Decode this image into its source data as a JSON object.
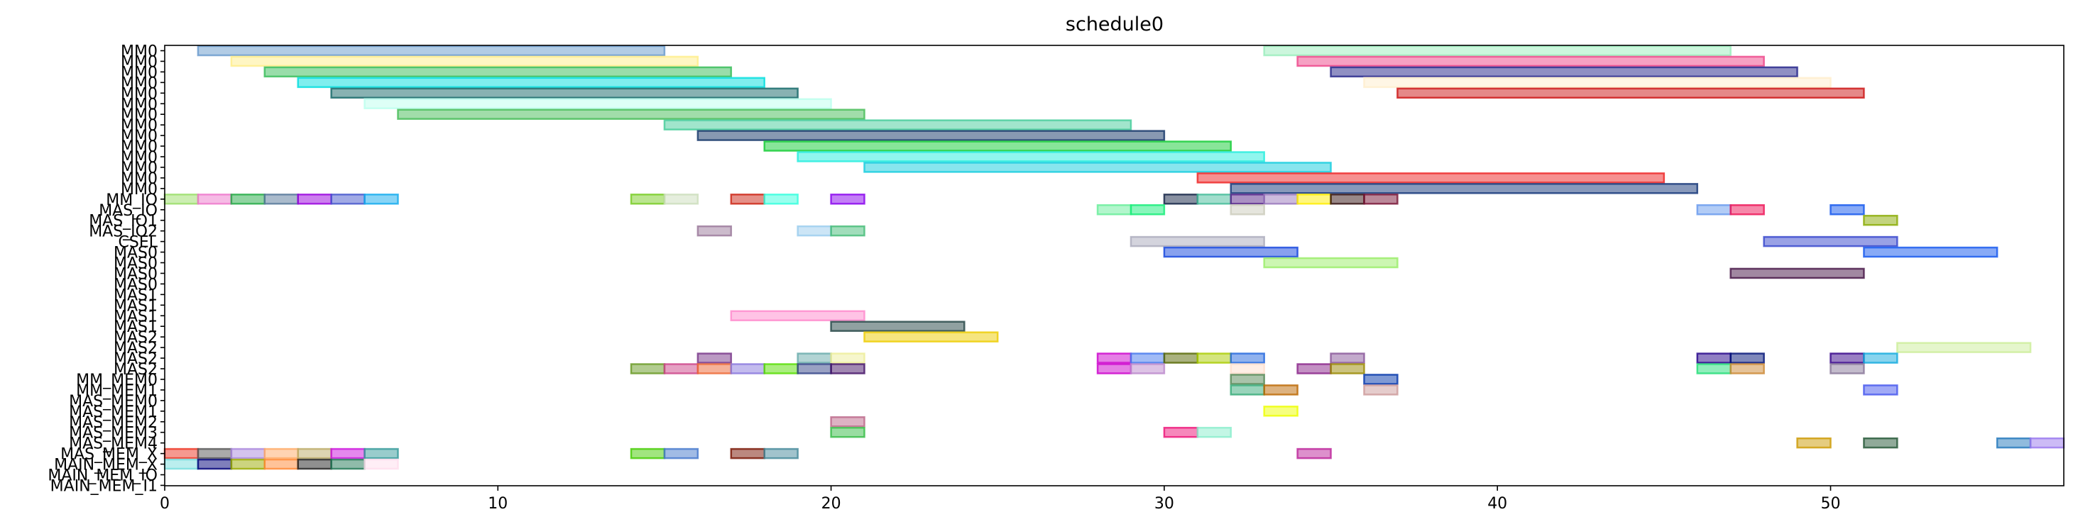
{
  "chart_data": {
    "type": "gantt",
    "title": "schedule0",
    "xlabel": "",
    "ylabel": "",
    "xlim": [
      0,
      57
    ],
    "x_ticks": [
      0,
      10,
      20,
      30,
      40,
      50
    ],
    "grid": false,
    "rows": [
      "MM0",
      "MM0",
      "MM0",
      "MM0",
      "MM0",
      "MM0",
      "MM0",
      "MM0",
      "MM0",
      "MM0",
      "MM0",
      "MM0",
      "MM0",
      "MM0",
      "MM_IO",
      "MAS_IO",
      "MAS_IO1",
      "MAS_IO2",
      "CSEL",
      "MAS0",
      "MAS0",
      "MAS0",
      "MAS0",
      "MAS1",
      "MAS1",
      "MAS1",
      "MAS1",
      "MAS2",
      "MAS2",
      "MAS2",
      "MAS2",
      "MM_MEM0",
      "MM_MEM1",
      "MAS_MEM0",
      "MAS_MEM1",
      "MAS_MEM2",
      "MAS_MEM3",
      "MAS_MEM4",
      "MAS_MEM_X",
      "MAIN_MEM_X",
      "MAIN_MEM_IO",
      "MAIN_MEM_I1"
    ],
    "bars": [
      {
        "row": 0,
        "start": 1,
        "end": 15,
        "color": "#6699cc"
      },
      {
        "row": 0,
        "start": 33,
        "end": 47,
        "color": "#99eebb"
      },
      {
        "row": 1,
        "start": 2,
        "end": 16,
        "color": "#ffee88"
      },
      {
        "row": 1,
        "start": 34,
        "end": 48,
        "color": "#ee4488"
      },
      {
        "row": 2,
        "start": 3,
        "end": 17,
        "color": "#33bb55"
      },
      {
        "row": 2,
        "start": 35,
        "end": 49,
        "color": "#222288"
      },
      {
        "row": 3,
        "start": 4,
        "end": 18,
        "color": "#00dddd"
      },
      {
        "row": 3,
        "start": 36,
        "end": 50,
        "color": "#ffeecc"
      },
      {
        "row": 4,
        "start": 5,
        "end": 19,
        "color": "#116666"
      },
      {
        "row": 4,
        "start": 37,
        "end": 51,
        "color": "#cc1111"
      },
      {
        "row": 5,
        "start": 6,
        "end": 20,
        "color": "#bbffee"
      },
      {
        "row": 6,
        "start": 7,
        "end": 21,
        "color": "#44bb55"
      },
      {
        "row": 7,
        "start": 15,
        "end": 29,
        "color": "#44cc99"
      },
      {
        "row": 8,
        "start": 16,
        "end": 30,
        "color": "#113366"
      },
      {
        "row": 9,
        "start": 18,
        "end": 32,
        "color": "#11cc33"
      },
      {
        "row": 10,
        "start": 19,
        "end": 33,
        "color": "#22eedd"
      },
      {
        "row": 11,
        "start": 21,
        "end": 35,
        "color": "#11ccdd"
      },
      {
        "row": 12,
        "start": 31,
        "end": 45,
        "color": "#ee2222"
      },
      {
        "row": 13,
        "start": 32,
        "end": 46,
        "color": "#113377"
      },
      {
        "row": 14,
        "start": 0,
        "end": 1,
        "color": "#99dd66"
      },
      {
        "row": 14,
        "start": 1,
        "end": 2,
        "color": "#ee77cc"
      },
      {
        "row": 14,
        "start": 2,
        "end": 3,
        "color": "#22aa44"
      },
      {
        "row": 14,
        "start": 3,
        "end": 4,
        "color": "#557799"
      },
      {
        "row": 14,
        "start": 4,
        "end": 5,
        "color": "#9900dd"
      },
      {
        "row": 14,
        "start": 5,
        "end": 6,
        "color": "#4455cc"
      },
      {
        "row": 14,
        "start": 6,
        "end": 7,
        "color": "#11aaee"
      },
      {
        "row": 14,
        "start": 14,
        "end": 15,
        "color": "#77cc22"
      },
      {
        "row": 14,
        "start": 15,
        "end": 16,
        "color": "#ccddbb"
      },
      {
        "row": 14,
        "start": 17,
        "end": 18,
        "color": "#cc2211"
      },
      {
        "row": 14,
        "start": 18,
        "end": 19,
        "color": "#33ffdd"
      },
      {
        "row": 14,
        "start": 20,
        "end": 21,
        "color": "#8800ee"
      },
      {
        "row": 14,
        "start": 30,
        "end": 31,
        "color": "#112244"
      },
      {
        "row": 14,
        "start": 31,
        "end": 32,
        "color": "#44bb99"
      },
      {
        "row": 14,
        "start": 32,
        "end": 33,
        "color": "#552288"
      },
      {
        "row": 14,
        "start": 33,
        "end": 34,
        "color": "#9977bb"
      },
      {
        "row": 14,
        "start": 34,
        "end": 35,
        "color": "#ffee00"
      },
      {
        "row": 14,
        "start": 35,
        "end": 36,
        "color": "#331111"
      },
      {
        "row": 14,
        "start": 36,
        "end": 37,
        "color": "#771133"
      },
      {
        "row": 15,
        "start": 28,
        "end": 29,
        "color": "#66ee99"
      },
      {
        "row": 15,
        "start": 29,
        "end": 30,
        "color": "#11ee77"
      },
      {
        "row": 15,
        "start": 32,
        "end": 33,
        "color": "#ccccbb"
      },
      {
        "row": 15,
        "start": 46,
        "end": 47,
        "color": "#6699ee"
      },
      {
        "row": 15,
        "start": 47,
        "end": 48,
        "color": "#ee1155"
      },
      {
        "row": 15,
        "start": 50,
        "end": 51,
        "color": "#1155ee"
      },
      {
        "row": 16,
        "start": 51,
        "end": 52,
        "color": "#88aa00"
      },
      {
        "row": 17,
        "start": 16,
        "end": 17,
        "color": "#997799"
      },
      {
        "row": 17,
        "start": 19,
        "end": 20,
        "color": "#99ccee"
      },
      {
        "row": 17,
        "start": 20,
        "end": 21,
        "color": "#44bb77"
      },
      {
        "row": 18,
        "start": 29,
        "end": 33,
        "color": "#aaaabb"
      },
      {
        "row": 18,
        "start": 48,
        "end": 52,
        "color": "#3344cc"
      },
      {
        "row": 19,
        "start": 30,
        "end": 34,
        "color": "#1144dd"
      },
      {
        "row": 19,
        "start": 51,
        "end": 55,
        "color": "#1155ee"
      },
      {
        "row": 20,
        "start": 33,
        "end": 37,
        "color": "#99ee66"
      },
      {
        "row": 21,
        "start": 47,
        "end": 51,
        "color": "#441144"
      },
      {
        "row": 25,
        "start": 17,
        "end": 21,
        "color": "#ff88cc"
      },
      {
        "row": 26,
        "start": 20,
        "end": 24,
        "color": "#224444"
      },
      {
        "row": 27,
        "start": 21,
        "end": 25,
        "color": "#eecc00"
      },
      {
        "row": 28,
        "start": 52,
        "end": 56,
        "color": "#ccee99"
      },
      {
        "row": 29,
        "start": 16,
        "end": 17,
        "color": "#773388"
      },
      {
        "row": 29,
        "start": 19,
        "end": 20,
        "color": "#66aaaa"
      },
      {
        "row": 29,
        "start": 20,
        "end": 21,
        "color": "#eeee99"
      },
      {
        "row": 29,
        "start": 28,
        "end": 29,
        "color": "#cc00cc"
      },
      {
        "row": 29,
        "start": 29,
        "end": 30,
        "color": "#4477ee"
      },
      {
        "row": 29,
        "start": 30,
        "end": 31,
        "color": "#556600"
      },
      {
        "row": 29,
        "start": 31,
        "end": 32,
        "color": "#aacc00"
      },
      {
        "row": 29,
        "start": 32,
        "end": 33,
        "color": "#2266dd"
      },
      {
        "row": 29,
        "start": 35,
        "end": 36,
        "color": "#885599"
      },
      {
        "row": 29,
        "start": 46,
        "end": 47,
        "color": "#220088"
      },
      {
        "row": 29,
        "start": 47,
        "end": 48,
        "color": "#001177"
      },
      {
        "row": 29,
        "start": 50,
        "end": 51,
        "color": "#330088"
      },
      {
        "row": 29,
        "start": 51,
        "end": 52,
        "color": "#11aadd"
      },
      {
        "row": 30,
        "start": 14,
        "end": 15,
        "color": "#669922"
      },
      {
        "row": 30,
        "start": 15,
        "end": 16,
        "color": "#cc4488"
      },
      {
        "row": 30,
        "start": 16,
        "end": 17,
        "color": "#ee6633"
      },
      {
        "row": 30,
        "start": 17,
        "end": 18,
        "color": "#8877dd"
      },
      {
        "row": 30,
        "start": 18,
        "end": 19,
        "color": "#55dd00"
      },
      {
        "row": 30,
        "start": 19,
        "end": 20,
        "color": "#334488"
      },
      {
        "row": 30,
        "start": 20,
        "end": 21,
        "color": "#441166"
      },
      {
        "row": 30,
        "start": 28,
        "end": 29,
        "color": "#cc00cc"
      },
      {
        "row": 30,
        "start": 29,
        "end": 30,
        "color": "#bb88cc"
      },
      {
        "row": 30,
        "start": 32,
        "end": 33,
        "color": "#ffddcc"
      },
      {
        "row": 30,
        "start": 34,
        "end": 35,
        "color": "#882288"
      },
      {
        "row": 30,
        "start": 35,
        "end": 36,
        "color": "#998800"
      },
      {
        "row": 30,
        "start": 46,
        "end": 47,
        "color": "#22dd77"
      },
      {
        "row": 30,
        "start": 47,
        "end": 48,
        "color": "#cc8833"
      },
      {
        "row": 30,
        "start": 50,
        "end": 51,
        "color": "#887799"
      },
      {
        "row": 31,
        "start": 32,
        "end": 33,
        "color": "#558855"
      },
      {
        "row": 31,
        "start": 36,
        "end": 37,
        "color": "#0033aa"
      },
      {
        "row": 32,
        "start": 32,
        "end": 33,
        "color": "#33aa77"
      },
      {
        "row": 32,
        "start": 33,
        "end": 34,
        "color": "#bb6600"
      },
      {
        "row": 32,
        "start": 36,
        "end": 37,
        "color": "#cc9999"
      },
      {
        "row": 32,
        "start": 51,
        "end": 52,
        "color": "#4455ee"
      },
      {
        "row": 34,
        "start": 33,
        "end": 34,
        "color": "#eeff00"
      },
      {
        "row": 35,
        "start": 20,
        "end": 21,
        "color": "#bb6688"
      },
      {
        "row": 36,
        "start": 20,
        "end": 21,
        "color": "#33bb44"
      },
      {
        "row": 36,
        "start": 30,
        "end": 31,
        "color": "#ee1177"
      },
      {
        "row": 36,
        "start": 31,
        "end": 32,
        "color": "#88eecc"
      },
      {
        "row": 37,
        "start": 49,
        "end": 50,
        "color": "#cc9900"
      },
      {
        "row": 37,
        "start": 51,
        "end": 52,
        "color": "#225533"
      },
      {
        "row": 37,
        "start": 55,
        "end": 56,
        "color": "#2277bb"
      },
      {
        "row": 37,
        "start": 56,
        "end": 57,
        "color": "#9977ee"
      },
      {
        "row": 38,
        "start": 0,
        "end": 1,
        "color": "#ee3322"
      },
      {
        "row": 38,
        "start": 1,
        "end": 2,
        "color": "#555555"
      },
      {
        "row": 38,
        "start": 2,
        "end": 3,
        "color": "#aa88dd"
      },
      {
        "row": 38,
        "start": 3,
        "end": 4,
        "color": "#ffaa66"
      },
      {
        "row": 38,
        "start": 4,
        "end": 5,
        "color": "#bbaa66"
      },
      {
        "row": 38,
        "start": 5,
        "end": 6,
        "color": "#cc11dd"
      },
      {
        "row": 38,
        "start": 6,
        "end": 7,
        "color": "#339999"
      },
      {
        "row": 38,
        "start": 14,
        "end": 15,
        "color": "#44cc00"
      },
      {
        "row": 38,
        "start": 15,
        "end": 16,
        "color": "#4477cc"
      },
      {
        "row": 38,
        "start": 17,
        "end": 18,
        "color": "#771100"
      },
      {
        "row": 38,
        "start": 18,
        "end": 19,
        "color": "#448899"
      },
      {
        "row": 38,
        "start": 34,
        "end": 35,
        "color": "#bb2299"
      },
      {
        "row": 39,
        "start": 0,
        "end": 1,
        "color": "#77dddd"
      },
      {
        "row": 39,
        "start": 1,
        "end": 2,
        "color": "#000077"
      },
      {
        "row": 39,
        "start": 2,
        "end": 3,
        "color": "#99aa00"
      },
      {
        "row": 39,
        "start": 3,
        "end": 4,
        "color": "#ff8833"
      },
      {
        "row": 39,
        "start": 4,
        "end": 5,
        "color": "#222222"
      },
      {
        "row": 39,
        "start": 5,
        "end": 6,
        "color": "#227755"
      },
      {
        "row": 39,
        "start": 6,
        "end": 7,
        "color": "#ffddee"
      }
    ]
  }
}
